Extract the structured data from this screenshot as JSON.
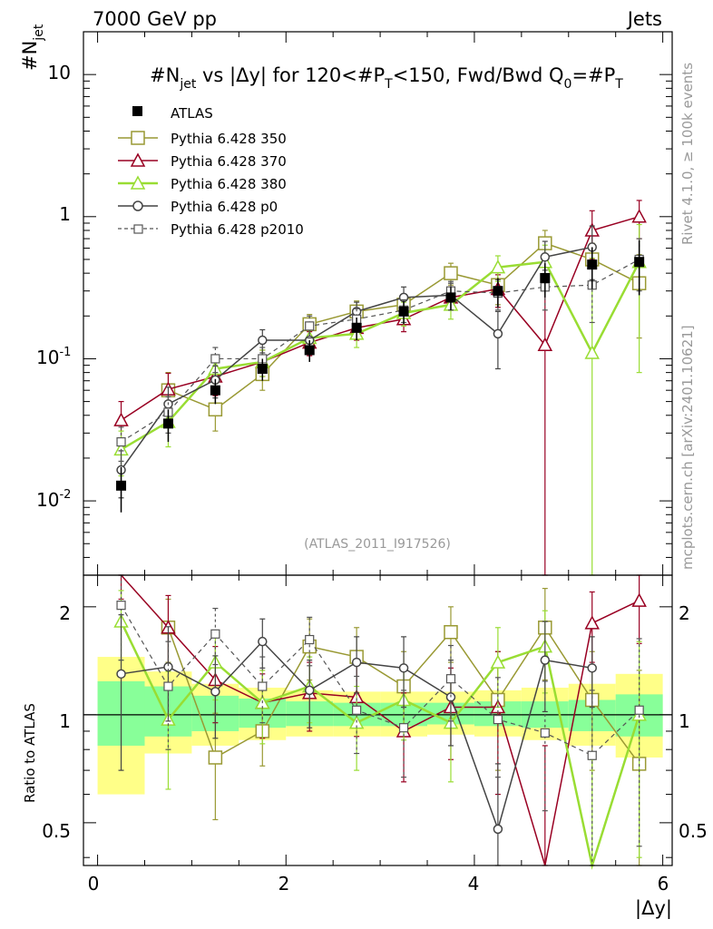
{
  "header": {
    "left": "7000 GeV pp",
    "right": "Jets"
  },
  "side_labels": {
    "rivet": "Rivet 4.1.0, ≥ 100k events",
    "mcplots": "mcplots.cern.ch [arXiv:2401.10621]"
  },
  "watermark": "(ATLAS_2011_I917526)",
  "chart_data": {
    "type": "line",
    "title": "#N_jet vs |Δy| for 120<#P_T<150, Fwd/Bwd Q0=#P_T",
    "title_parts": {
      "a": "#N",
      "a_sub": "jet",
      "b": " vs |Δy| for 120<#P",
      "b_sub": "T",
      "c": "<150, Fwd/Bwd Q",
      "c_sub": "0",
      "d": "=#P",
      "d_sub": "T"
    },
    "ylabel": "#N_jet",
    "ylabel_parts": {
      "main": "#N",
      "sub": "jet"
    },
    "xlabel": "|Δy|",
    "xlim": [
      -0.15,
      6.1
    ],
    "ylim_main": [
      0.003,
      20
    ],
    "yscale_main": "log",
    "ylim_ratio": [
      0.38,
      2.45
    ],
    "ratio_ylabel": "Ratio to ATLAS",
    "x_ticks": [
      0,
      2,
      4,
      6
    ],
    "x_tick_labels": [
      "0",
      "2",
      "4",
      "6"
    ],
    "y_ticks_main": [
      0.01,
      0.1,
      1,
      10
    ],
    "y_tick_labels_main": {
      "m2": "10",
      "m2_exp": "-2",
      "m1": "10",
      "m1_exp": "-1",
      "one": "1",
      "ten": "10"
    },
    "y_ticks_ratio": [
      0.5,
      1,
      2
    ],
    "y_tick_labels_ratio": [
      "0.5",
      "1",
      "2"
    ],
    "bin_edges": [
      0,
      0.5,
      1,
      1.5,
      2,
      2.5,
      3,
      3.5,
      4,
      4.5,
      5,
      5.5,
      6
    ],
    "x": [
      0.25,
      0.75,
      1.25,
      1.75,
      2.25,
      2.75,
      3.25,
      3.75,
      4.25,
      4.75,
      5.25,
      5.75
    ],
    "data": {
      "name": "ATLAS",
      "values": [
        0.0128,
        0.035,
        0.06,
        0.085,
        0.115,
        0.165,
        0.215,
        0.27,
        0.3,
        0.37,
        0.46,
        0.48
      ],
      "err_lo": [
        0.0045,
        0.009,
        0.012,
        0.015,
        0.02,
        0.03,
        0.04,
        0.05,
        0.07,
        0.1,
        0.15,
        0.2
      ],
      "err_hi": [
        0.0045,
        0.009,
        0.012,
        0.015,
        0.02,
        0.03,
        0.04,
        0.05,
        0.07,
        0.1,
        0.15,
        0.2
      ]
    },
    "band_inner": [
      [
        0.82,
        1.24
      ],
      [
        0.87,
        1.2
      ],
      [
        0.9,
        1.13
      ],
      [
        0.92,
        1.11
      ],
      [
        0.93,
        1.09
      ],
      [
        0.93,
        1.08
      ],
      [
        0.93,
        1.08
      ],
      [
        0.94,
        1.08
      ],
      [
        0.93,
        1.09
      ],
      [
        0.92,
        1.09
      ],
      [
        0.9,
        1.1
      ],
      [
        0.87,
        1.14
      ]
    ],
    "band_outer": [
      [
        0.6,
        1.45
      ],
      [
        0.78,
        1.32
      ],
      [
        0.82,
        1.22
      ],
      [
        0.85,
        1.19
      ],
      [
        0.87,
        1.17
      ],
      [
        0.87,
        1.16
      ],
      [
        0.87,
        1.16
      ],
      [
        0.88,
        1.16
      ],
      [
        0.87,
        1.17
      ],
      [
        0.85,
        1.19
      ],
      [
        0.82,
        1.22
      ],
      [
        0.76,
        1.3
      ]
    ],
    "series": [
      {
        "name": "Pythia 6.428 350",
        "color": "#999933",
        "marker": "square",
        "dash": false,
        "width": 1.5,
        "values": [
          null,
          0.06,
          0.044,
          0.078,
          0.175,
          0.215,
          0.24,
          0.4,
          0.33,
          0.65,
          0.5,
          0.34
        ],
        "err": [
          null,
          0.02,
          0.013,
          0.018,
          0.03,
          0.04,
          0.045,
          0.07,
          0.09,
          0.15,
          0.15,
          0.2
        ],
        "ratio": [
          null,
          1.75,
          0.76,
          0.9,
          1.55,
          1.45,
          1.2,
          1.7,
          1.1,
          1.75,
          1.1,
          0.73
        ],
        "ratio_err": [
          null,
          0.35,
          0.25,
          0.18,
          0.3,
          0.3,
          0.3,
          0.3,
          0.4,
          0.5,
          0.4,
          0.6
        ]
      },
      {
        "name": "Pythia 6.428 370",
        "color": "#990022",
        "marker": "triangle",
        "dash": false,
        "width": 1.5,
        "values": [
          0.037,
          0.061,
          0.075,
          0.095,
          0.13,
          0.165,
          0.19,
          0.27,
          0.31,
          0.125,
          0.8,
          1.0
        ],
        "err": [
          0.013,
          0.018,
          0.02,
          0.02,
          0.025,
          0.03,
          0.035,
          0.05,
          0.08,
          0.2,
          0.3,
          0.3
        ],
        "ratio": [
          2.6,
          1.75,
          1.25,
          1.08,
          1.15,
          1.12,
          0.9,
          1.05,
          1.05,
          0.32,
          1.8,
          2.08
        ],
        "ratio_err": [
          0.5,
          0.4,
          0.3,
          0.22,
          0.25,
          0.25,
          0.25,
          0.3,
          0.45,
          0.5,
          0.4,
          0.5
        ]
      },
      {
        "name": "Pythia 6.428 380",
        "color": "#99dd33",
        "marker": "triangle",
        "dash": false,
        "width": 2.5,
        "values": [
          0.023,
          0.036,
          0.085,
          0.095,
          0.14,
          0.15,
          0.21,
          0.24,
          0.44,
          0.48,
          0.11,
          0.48
        ],
        "err": [
          0.008,
          0.012,
          0.018,
          0.02,
          0.025,
          0.03,
          0.04,
          0.05,
          0.09,
          0.15,
          0.4,
          0.4
        ],
        "ratio": [
          1.82,
          0.97,
          1.4,
          1.08,
          1.2,
          0.95,
          1.1,
          0.95,
          1.4,
          1.55,
          0.25,
          1.0
        ],
        "ratio_err": [
          0.4,
          0.35,
          0.3,
          0.25,
          0.25,
          0.25,
          0.25,
          0.3,
          0.35,
          0.4,
          0.5,
          0.6
        ]
      },
      {
        "name": "Pythia 6.428 p0",
        "color": "#444444",
        "marker": "circle",
        "dash": false,
        "width": 1.5,
        "values": [
          0.0165,
          0.048,
          0.071,
          0.135,
          0.135,
          0.215,
          0.27,
          0.28,
          0.15,
          0.52,
          0.61,
          null
        ],
        "err": [
          0.006,
          0.015,
          0.018,
          0.025,
          0.025,
          0.035,
          0.05,
          0.06,
          0.065,
          0.15,
          0.25,
          null
        ],
        "ratio": [
          1.3,
          1.36,
          1.16,
          1.6,
          1.17,
          1.4,
          1.35,
          1.12,
          0.48,
          1.42,
          1.35,
          null
        ],
        "ratio_err": [
          0.6,
          0.4,
          0.3,
          0.25,
          0.25,
          0.25,
          0.3,
          0.3,
          0.25,
          0.4,
          0.3,
          null
        ]
      },
      {
        "name": "Pythia 6.428 p2010",
        "color": "#555555",
        "marker": "square-small",
        "dash": true,
        "width": 1.2,
        "values": [
          0.026,
          0.042,
          0.1,
          0.1,
          0.17,
          0.19,
          0.22,
          0.3,
          0.29,
          0.32,
          0.33,
          0.5
        ],
        "err": [
          0.007,
          0.012,
          0.02,
          0.02,
          0.03,
          0.035,
          0.04,
          0.05,
          0.07,
          0.1,
          0.15,
          0.2
        ],
        "ratio": [
          2.02,
          1.2,
          1.68,
          1.2,
          1.62,
          1.03,
          0.92,
          1.26,
          0.97,
          0.89,
          0.77,
          1.03
        ],
        "ratio_err": [
          0.6,
          0.4,
          0.3,
          0.25,
          0.25,
          0.25,
          0.25,
          0.3,
          0.3,
          0.35,
          0.4,
          0.6
        ]
      }
    ]
  }
}
